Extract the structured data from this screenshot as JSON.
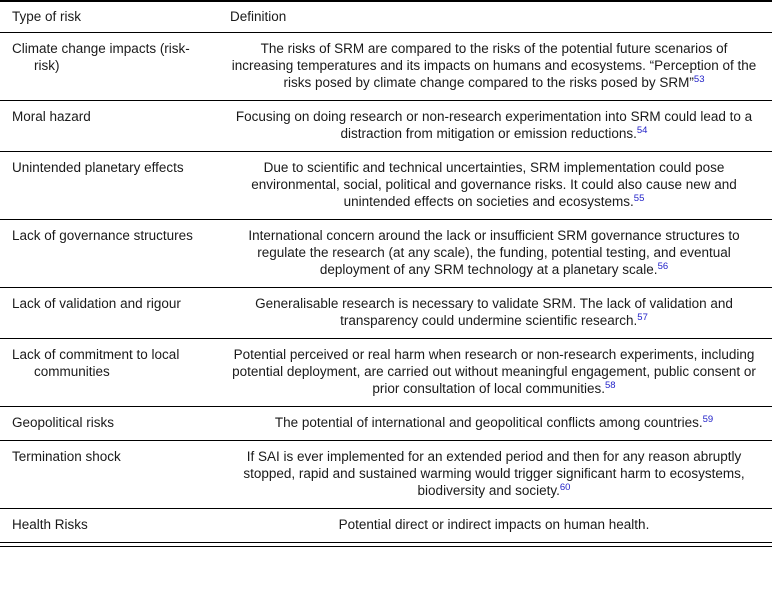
{
  "colors": {
    "reference": "#2222c8",
    "text": "#1a1a1a",
    "rule": "#000000"
  },
  "table": {
    "headers": [
      "Type of risk",
      "Definition"
    ],
    "rows": [
      {
        "risk": "Climate change impacts (risk-risk)",
        "definition": "The risks of SRM are compared to the risks of the potential future scenarios of increasing temperatures and its impacts on humans and ecosystems. “Perception of the risks posed by climate change compared to the risks posed by SRM”",
        "ref": "53"
      },
      {
        "risk": "Moral hazard",
        "definition": "Focusing on doing research or non-research experimentation into SRM could lead to a distraction from mitigation or emission reductions.",
        "ref": "54"
      },
      {
        "risk": "Unintended planetary effects",
        "definition": "Due to scientific and technical uncertainties, SRM implementation could pose environmental, social, political and governance risks. It could also cause new and unintended effects on societies and ecosystems.",
        "ref": "55"
      },
      {
        "risk": "Lack of governance structures",
        "definition": "International concern around the lack or insufficient SRM governance structures to regulate the research (at any scale), the funding, potential testing, and eventual deployment of any SRM technology at a planetary scale.",
        "ref": "56"
      },
      {
        "risk": "Lack of validation and rigour",
        "definition": "Generalisable research is necessary to validate SRM. The lack of validation and transparency could undermine scientific research.",
        "ref": "57"
      },
      {
        "risk": "Lack of commitment to local communities",
        "definition": "Potential perceived or real harm when research or non-research experiments, including potential deployment, are carried out without meaningful engagement, public consent or prior consultation of local communities.",
        "ref": "58"
      },
      {
        "risk": "Geopolitical risks",
        "definition": "The potential of international and geopolitical conflicts among countries.",
        "ref": "59"
      },
      {
        "risk": "Termination shock",
        "definition": "If SAI is ever implemented for an extended period and then for any reason abruptly stopped, rapid and sustained warming would trigger significant harm to ecosystems, biodiversity and society.",
        "ref": "60"
      },
      {
        "risk": "Health Risks",
        "definition": "Potential direct or indirect impacts on human health.",
        "ref": ""
      }
    ]
  }
}
